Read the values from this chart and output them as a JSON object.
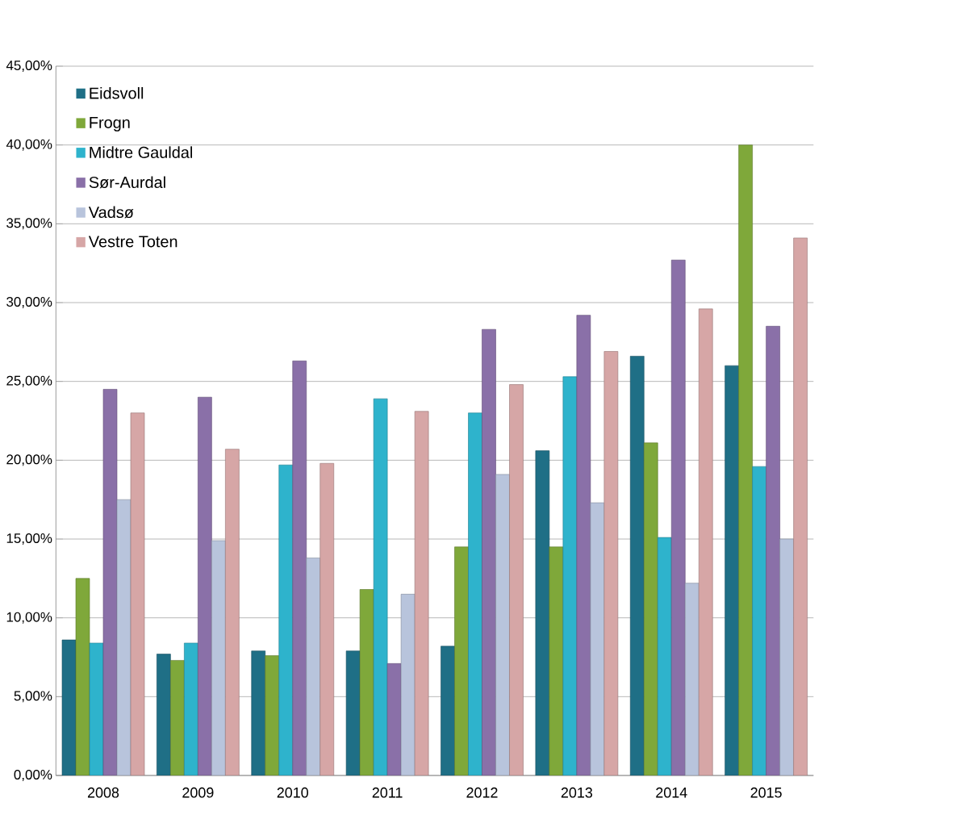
{
  "chart_data": {
    "type": "bar",
    "categories": [
      "2008",
      "2009",
      "2010",
      "2011",
      "2012",
      "2013",
      "2014",
      "2015"
    ],
    "series": [
      {
        "name": "Eidsvoll",
        "color": "#1f6f86",
        "values": [
          8.6,
          7.7,
          7.9,
          7.9,
          8.2,
          20.6,
          26.6,
          26.0
        ]
      },
      {
        "name": "Frogn",
        "color": "#7fa83a",
        "values": [
          12.5,
          7.3,
          7.6,
          11.8,
          14.5,
          14.5,
          21.1,
          40.0
        ]
      },
      {
        "name": "Midtre Gauldal",
        "color": "#2eb3cc",
        "values": [
          8.4,
          8.4,
          19.7,
          23.9,
          23.0,
          25.3,
          15.1,
          19.6
        ]
      },
      {
        "name": "Sør-Aurdal",
        "color": "#8a70a8",
        "values": [
          24.5,
          24.0,
          26.3,
          7.1,
          28.3,
          29.2,
          32.7,
          28.5
        ]
      },
      {
        "name": "Vadsø",
        "color": "#b8c4dc",
        "values": [
          17.5,
          14.9,
          13.8,
          11.5,
          19.1,
          17.3,
          12.2,
          15.0
        ]
      },
      {
        "name": "Vestre Toten",
        "color": "#d6a6a6",
        "values": [
          23.0,
          20.7,
          19.8,
          23.1,
          24.8,
          26.9,
          29.6,
          34.1
        ]
      }
    ],
    "ylim": [
      0,
      45
    ],
    "yticks": [
      {
        "value": 0,
        "label": "0,00%"
      },
      {
        "value": 5,
        "label": "5,00%"
      },
      {
        "value": 10,
        "label": "10,00%"
      },
      {
        "value": 15,
        "label": "15,00%"
      },
      {
        "value": 20,
        "label": "20,00%"
      },
      {
        "value": 25,
        "label": "25,00%"
      },
      {
        "value": 30,
        "label": "30,00%"
      },
      {
        "value": 35,
        "label": "35,00%"
      },
      {
        "value": 40,
        "label": "40,00%"
      },
      {
        "value": 45,
        "label": "45,00%"
      }
    ],
    "grid": "y",
    "legend": "top left"
  }
}
